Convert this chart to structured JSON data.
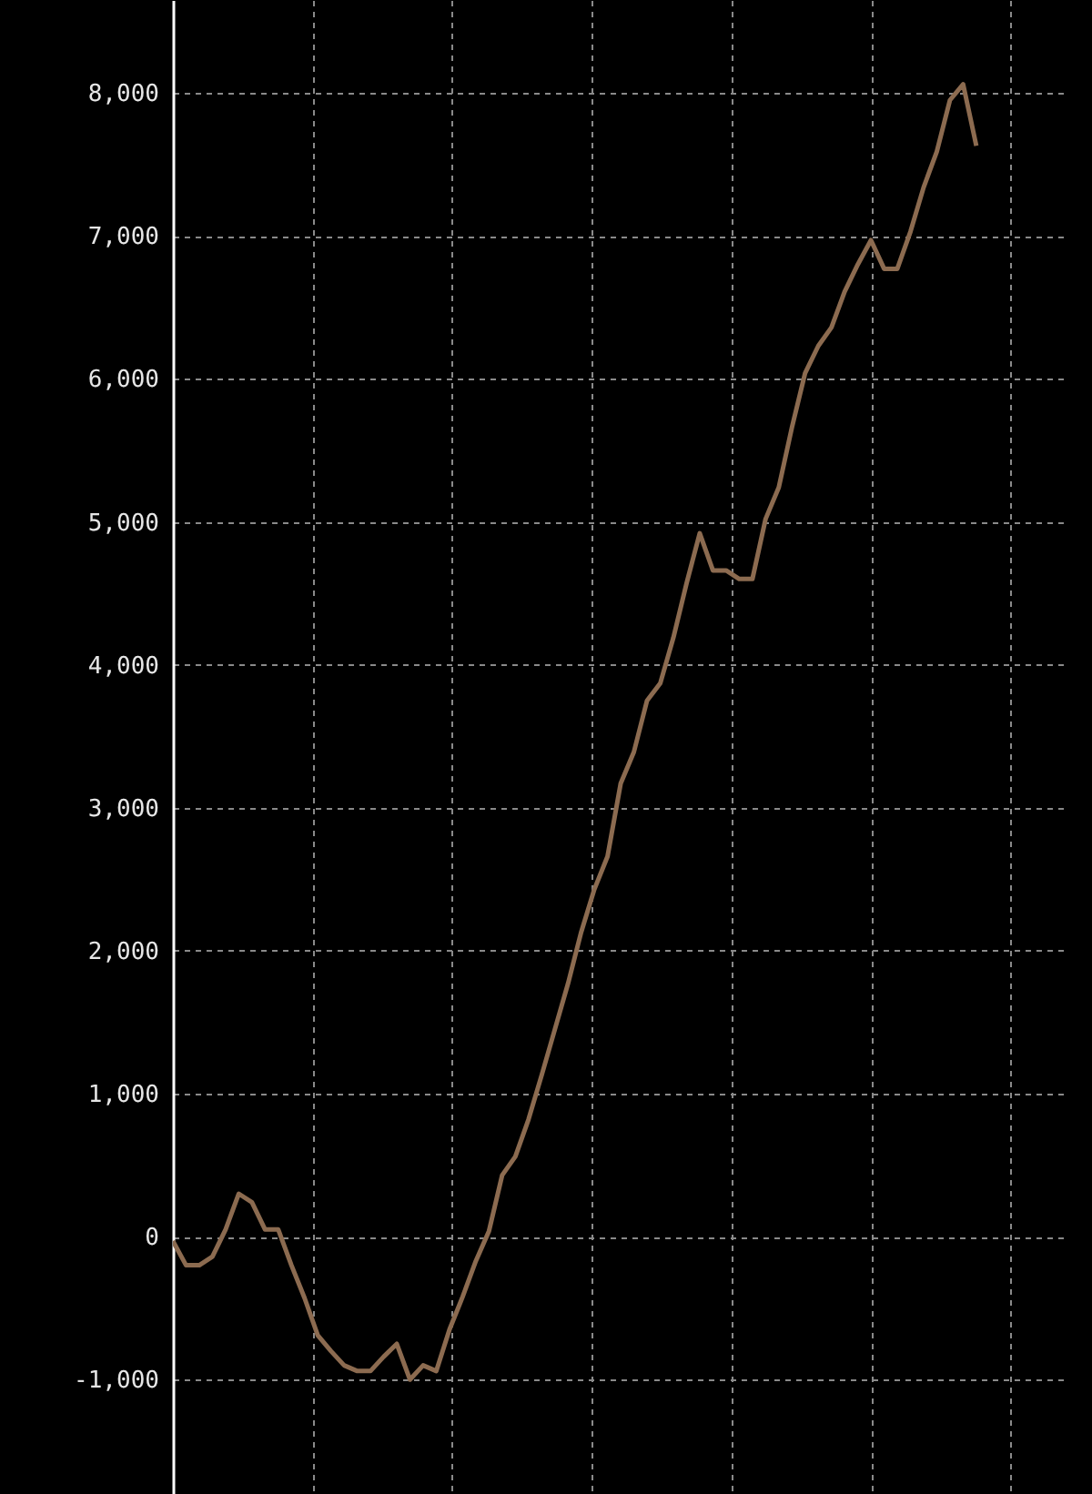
{
  "chart_data": {
    "type": "line",
    "categories": [
      null,
      null,
      null,
      null,
      null,
      null,
      null,
      null,
      null,
      null,
      null,
      null,
      null,
      null,
      null,
      null,
      null,
      null,
      null,
      null,
      null,
      null,
      null,
      null,
      null,
      null,
      null,
      null,
      null,
      null,
      null,
      null,
      null,
      null,
      null,
      null,
      null,
      null,
      null,
      null,
      null,
      null,
      null,
      null,
      null,
      null,
      null,
      null,
      null,
      null,
      null,
      null,
      null,
      null,
      null,
      null,
      null,
      null,
      null,
      null,
      null,
      null
    ],
    "series": [
      {
        "color": "#8c6b50",
        "values": [
          -30,
          -200,
          -200,
          -140,
          50,
          300,
          240,
          50,
          50,
          -200,
          -430,
          -690,
          -800,
          -900,
          -940,
          -940,
          -840,
          -750,
          -1000,
          -900,
          -940,
          -650,
          -420,
          -170,
          40,
          430,
          560,
          820,
          1130,
          1450,
          1770,
          2130,
          2430,
          2660,
          3170,
          3390,
          3750,
          3870,
          4190,
          4570,
          4920,
          4660,
          4660,
          4600,
          4600,
          5020,
          5240,
          5660,
          6040,
          6230,
          6360,
          6610,
          6800,
          6970,
          6770,
          6770,
          7030,
          7340,
          7590,
          7950,
          8060,
          7630
        ]
      }
    ],
    "ylim": [
      -1800,
      8650
    ],
    "yticks": [
      {
        "value": -1000,
        "label": "-1,000"
      },
      {
        "value": 0,
        "label": "0"
      },
      {
        "value": 1000,
        "label": "1,000"
      },
      {
        "value": 2000,
        "label": "2,000"
      },
      {
        "value": 3000,
        "label": "3,000"
      },
      {
        "value": 4000,
        "label": "4,000"
      },
      {
        "value": 5000,
        "label": "5,000"
      },
      {
        "value": 6000,
        "label": "6,000"
      },
      {
        "value": 7000,
        "label": "7,000"
      },
      {
        "value": 8000,
        "label": "8,000"
      }
    ],
    "tick_labels": "y",
    "grid": true
  }
}
